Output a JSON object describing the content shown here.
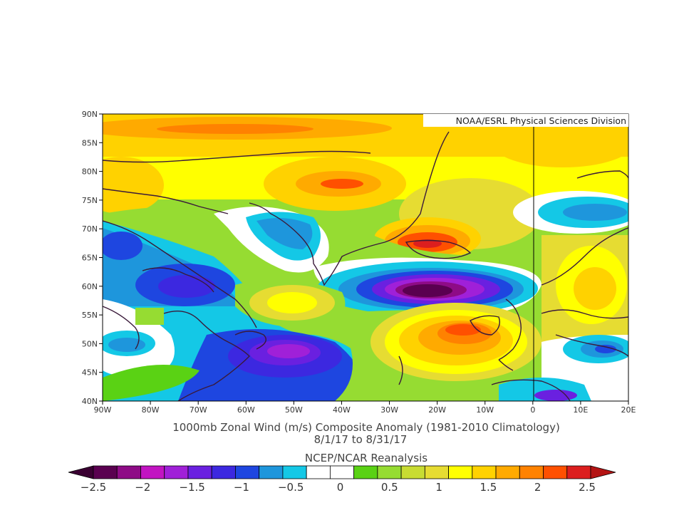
{
  "map": {
    "credit": "NOAA/ESRL Physical Sciences Division",
    "lat_labels": [
      "90N",
      "85N",
      "80N",
      "75N",
      "70N",
      "65N",
      "60N",
      "55N",
      "50N",
      "45N",
      "40N"
    ],
    "lon_labels": [
      "90W",
      "80W",
      "70W",
      "60W",
      "50W",
      "40W",
      "30W",
      "20W",
      "10W",
      "0",
      "10E",
      "20E"
    ],
    "lat_range": [
      40,
      90
    ],
    "lon_range": [
      -90,
      20
    ],
    "title_line1": "1000mb Zonal Wind (m/s) Composite Anomaly (1981-2010 Climatology)",
    "title_line2": "8/1/17  to 8/31/17",
    "title_line3": "NCEP/NCAR Reanalysis"
  },
  "colorbar": {
    "colors": [
      "#5a0050",
      "#8e0b86",
      "#c214c2",
      "#a020d8",
      "#6a20e0",
      "#3c28e0",
      "#1e46e0",
      "#1e96dc",
      "#14c8e6",
      "#ffffff",
      "#ffffff",
      "#5ad214",
      "#96dc32",
      "#c8dc32",
      "#e6dc32",
      "#ffff00",
      "#ffd200",
      "#ffaa00",
      "#ff8200",
      "#ff5000",
      "#dc1e1e"
    ],
    "labels": [
      "-2.5",
      "-2",
      "-1.5",
      "-1",
      "-0.5",
      "0",
      "0.5",
      "1",
      "1.5",
      "2",
      "2.5"
    ]
  }
}
